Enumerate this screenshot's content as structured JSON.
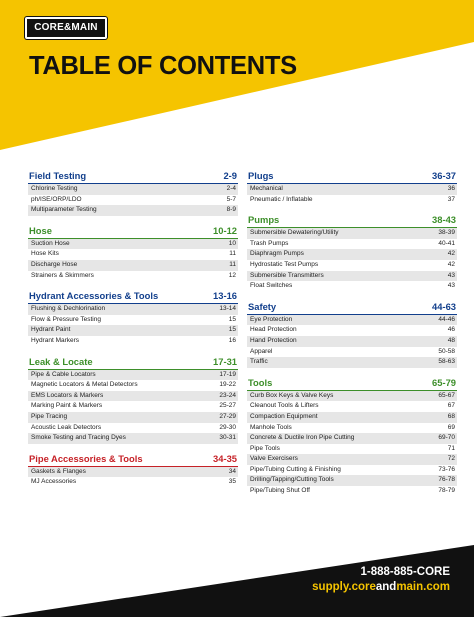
{
  "header": {
    "logo_text": "CORE&MAIN",
    "title": "TABLE OF CONTENTS",
    "accent_color": "#f5c400"
  },
  "colors": {
    "blue": "#123f8c",
    "green": "#3d8f2a",
    "red": "#c62127",
    "stripe": "#e6e6e6"
  },
  "left_column": [
    {
      "title": "Field Testing",
      "pages": "2-9",
      "color": "blue",
      "items": [
        {
          "label": "Chlorine Testing",
          "page": "2-4"
        },
        {
          "label": "ph/ISE/ORP/LDO",
          "page": "5-7"
        },
        {
          "label": "Multiparameter Testing",
          "page": "8-9"
        }
      ]
    },
    {
      "title": "Hose",
      "pages": "10-12",
      "color": "green",
      "items": [
        {
          "label": "Suction Hose",
          "page": "10"
        },
        {
          "label": "Hose Kits",
          "page": "11"
        },
        {
          "label": "Discharge Hose",
          "page": "11"
        },
        {
          "label": "Strainers & Skimmers",
          "page": "12"
        }
      ]
    },
    {
      "title": "Hydrant Accessories & Tools",
      "pages": "13-16",
      "color": "blue",
      "items": [
        {
          "label": "Flushing & Dechlorination",
          "page": "13-14"
        },
        {
          "label": "Flow & Pressure Testing",
          "page": "15"
        },
        {
          "label": "Hydrant Paint",
          "page": "15"
        },
        {
          "label": "Hydrant Markers",
          "page": "16"
        }
      ]
    },
    {
      "title": "Leak & Locate",
      "pages": "17-31",
      "color": "green",
      "items": [
        {
          "label": "Pipe & Cable Locators",
          "page": "17-19"
        },
        {
          "label": "Magnetic Locators & Metal Detectors",
          "page": "19-22"
        },
        {
          "label": "EMS Locators & Markers",
          "page": "23-24"
        },
        {
          "label": "Marking Paint & Markers",
          "page": "25-27"
        },
        {
          "label": "Pipe Tracing",
          "page": "27-29"
        },
        {
          "label": "Acoustic Leak Detectors",
          "page": "29-30"
        },
        {
          "label": "Smoke Testing and Tracing Dyes",
          "page": "30-31"
        }
      ]
    },
    {
      "title": "Pipe Accessories & Tools",
      "pages": "34-35",
      "color": "red",
      "items": [
        {
          "label": "Gaskets & Flanges",
          "page": "34"
        },
        {
          "label": "MJ Accessories",
          "page": "35"
        }
      ]
    }
  ],
  "right_column": [
    {
      "title": "Plugs",
      "pages": "36-37",
      "color": "blue",
      "items": [
        {
          "label": "Mechanical",
          "page": "36"
        },
        {
          "label": "Pneumatic / Inflatable",
          "page": "37"
        }
      ]
    },
    {
      "title": "Pumps",
      "pages": "38-43",
      "color": "green",
      "items": [
        {
          "label": "Submersible Dewatering/Utility",
          "page": "38-39"
        },
        {
          "label": "Trash Pumps",
          "page": "40-41"
        },
        {
          "label": "Diaphragm Pumps",
          "page": "42"
        },
        {
          "label": "Hydrostatic Test Pumps",
          "page": "42"
        },
        {
          "label": "Submersible Transmitters",
          "page": "43"
        },
        {
          "label": "Float Switches",
          "page": "43"
        }
      ]
    },
    {
      "title": "Safety",
      "pages": "44-63",
      "color": "blue",
      "items": [
        {
          "label": "Eye Protection",
          "page": "44-46"
        },
        {
          "label": "Head Protection",
          "page": "46"
        },
        {
          "label": "Hand Protection",
          "page": "48"
        },
        {
          "label": "Apparel",
          "page": "50-58"
        },
        {
          "label": "Traffic",
          "page": "58-63"
        }
      ]
    },
    {
      "title": "Tools",
      "pages": "65-79",
      "color": "green",
      "items": [
        {
          "label": "Curb Box Keys & Valve Keys",
          "page": "65-67"
        },
        {
          "label": "Cleanout Tools & Lifters",
          "page": "67"
        },
        {
          "label": "Compaction Equipment",
          "page": "68"
        },
        {
          "label": "Manhole Tools",
          "page": "69"
        },
        {
          "label": "Concrete & Ductile Iron Pipe Cutting",
          "page": "69-70"
        },
        {
          "label": "Pipe Tools",
          "page": "71"
        },
        {
          "label": "Valve Exercisers",
          "page": "72"
        },
        {
          "label": "Pipe/Tubing Cutting & Finishing",
          "page": "73-76"
        },
        {
          "label": "Drilling/Tapping/Cutting Tools",
          "page": "76-78"
        },
        {
          "label": "Pipe/Tubing Shut Off",
          "page": "78-79"
        }
      ]
    }
  ],
  "footer": {
    "phone": "1-888-885-CORE",
    "url_prefix": "supply.",
    "url_core": "core",
    "url_and": "and",
    "url_main": "main.com"
  }
}
